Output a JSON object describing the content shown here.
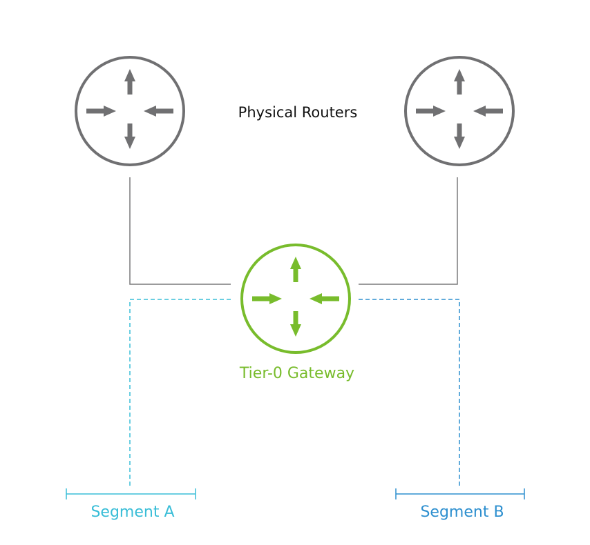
{
  "routers_label": "Physical Routers",
  "gateway": {
    "label": "Tier-0 Gateway"
  },
  "segments": [
    {
      "label": "Segment A"
    },
    {
      "label": "Segment B"
    }
  ],
  "colors": {
    "router": "#707072",
    "gateway": "#78bc2c",
    "segment_a": "#38bdd7",
    "segment_b": "#2d8fcf",
    "link": "#7a7a7c",
    "text": "#111111"
  },
  "icons": {
    "router": "router-icon",
    "gateway": "gateway-router-icon"
  }
}
